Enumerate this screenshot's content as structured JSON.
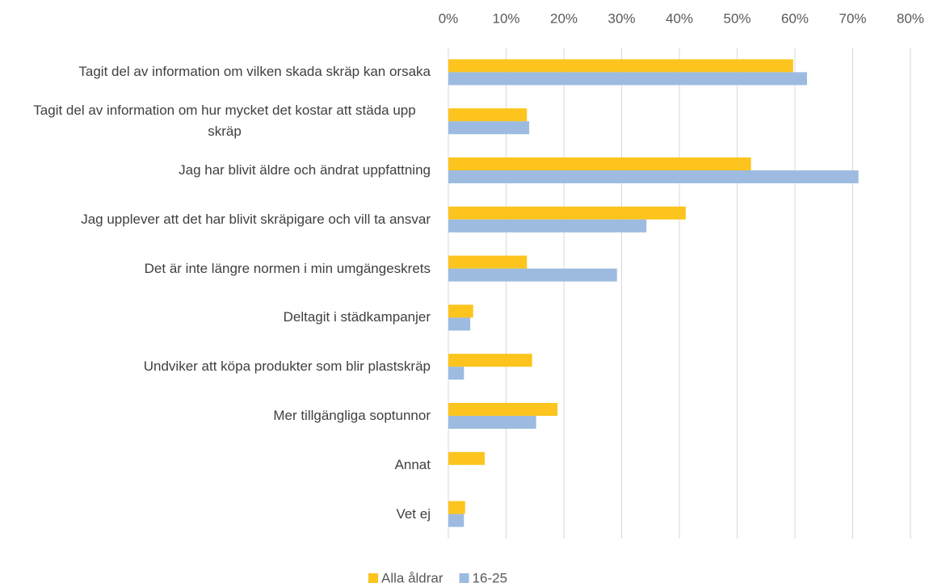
{
  "chart_data": {
    "type": "bar",
    "orientation": "horizontal",
    "categories": [
      "Tagit del av information om vilken skada skräp kan orsaka",
      "Tagit del av information om hur mycket det kostar att städa upp skräp",
      "Jag har blivit äldre och ändrat uppfattning",
      "Jag upplever att det har blivit skräpigare och vill ta ansvar",
      "Det är inte längre normen i min umgängeskrets",
      "Deltagit i städkampanjer",
      "Undviker att köpa produkter som blir plastskräp",
      "Mer tillgängliga soptunnor",
      "Annat",
      "Vet ej"
    ],
    "series": [
      {
        "name": "Alla åldrar",
        "color": "#fcc41c",
        "values": [
          59.7,
          13.6,
          52.4,
          41.1,
          13.6,
          4.3,
          14.5,
          18.9,
          6.3,
          2.9
        ]
      },
      {
        "name": "16-25",
        "color": "#9dbbe0",
        "values": [
          62.1,
          14.0,
          71.0,
          34.3,
          29.2,
          3.8,
          2.7,
          15.2,
          null,
          2.7
        ]
      }
    ],
    "xlim": [
      0,
      80
    ],
    "xticks": [
      {
        "value": 0,
        "label": "0%"
      },
      {
        "value": 10,
        "label": "10%"
      },
      {
        "value": 20,
        "label": "20%"
      },
      {
        "value": 30,
        "label": "30%"
      },
      {
        "value": 40,
        "label": "40%"
      },
      {
        "value": 50,
        "label": "50%"
      },
      {
        "value": 60,
        "label": "60%"
      },
      {
        "value": 70,
        "label": "70%"
      },
      {
        "value": 80,
        "label": "80%"
      }
    ],
    "grid": true,
    "legend": "bottom"
  }
}
